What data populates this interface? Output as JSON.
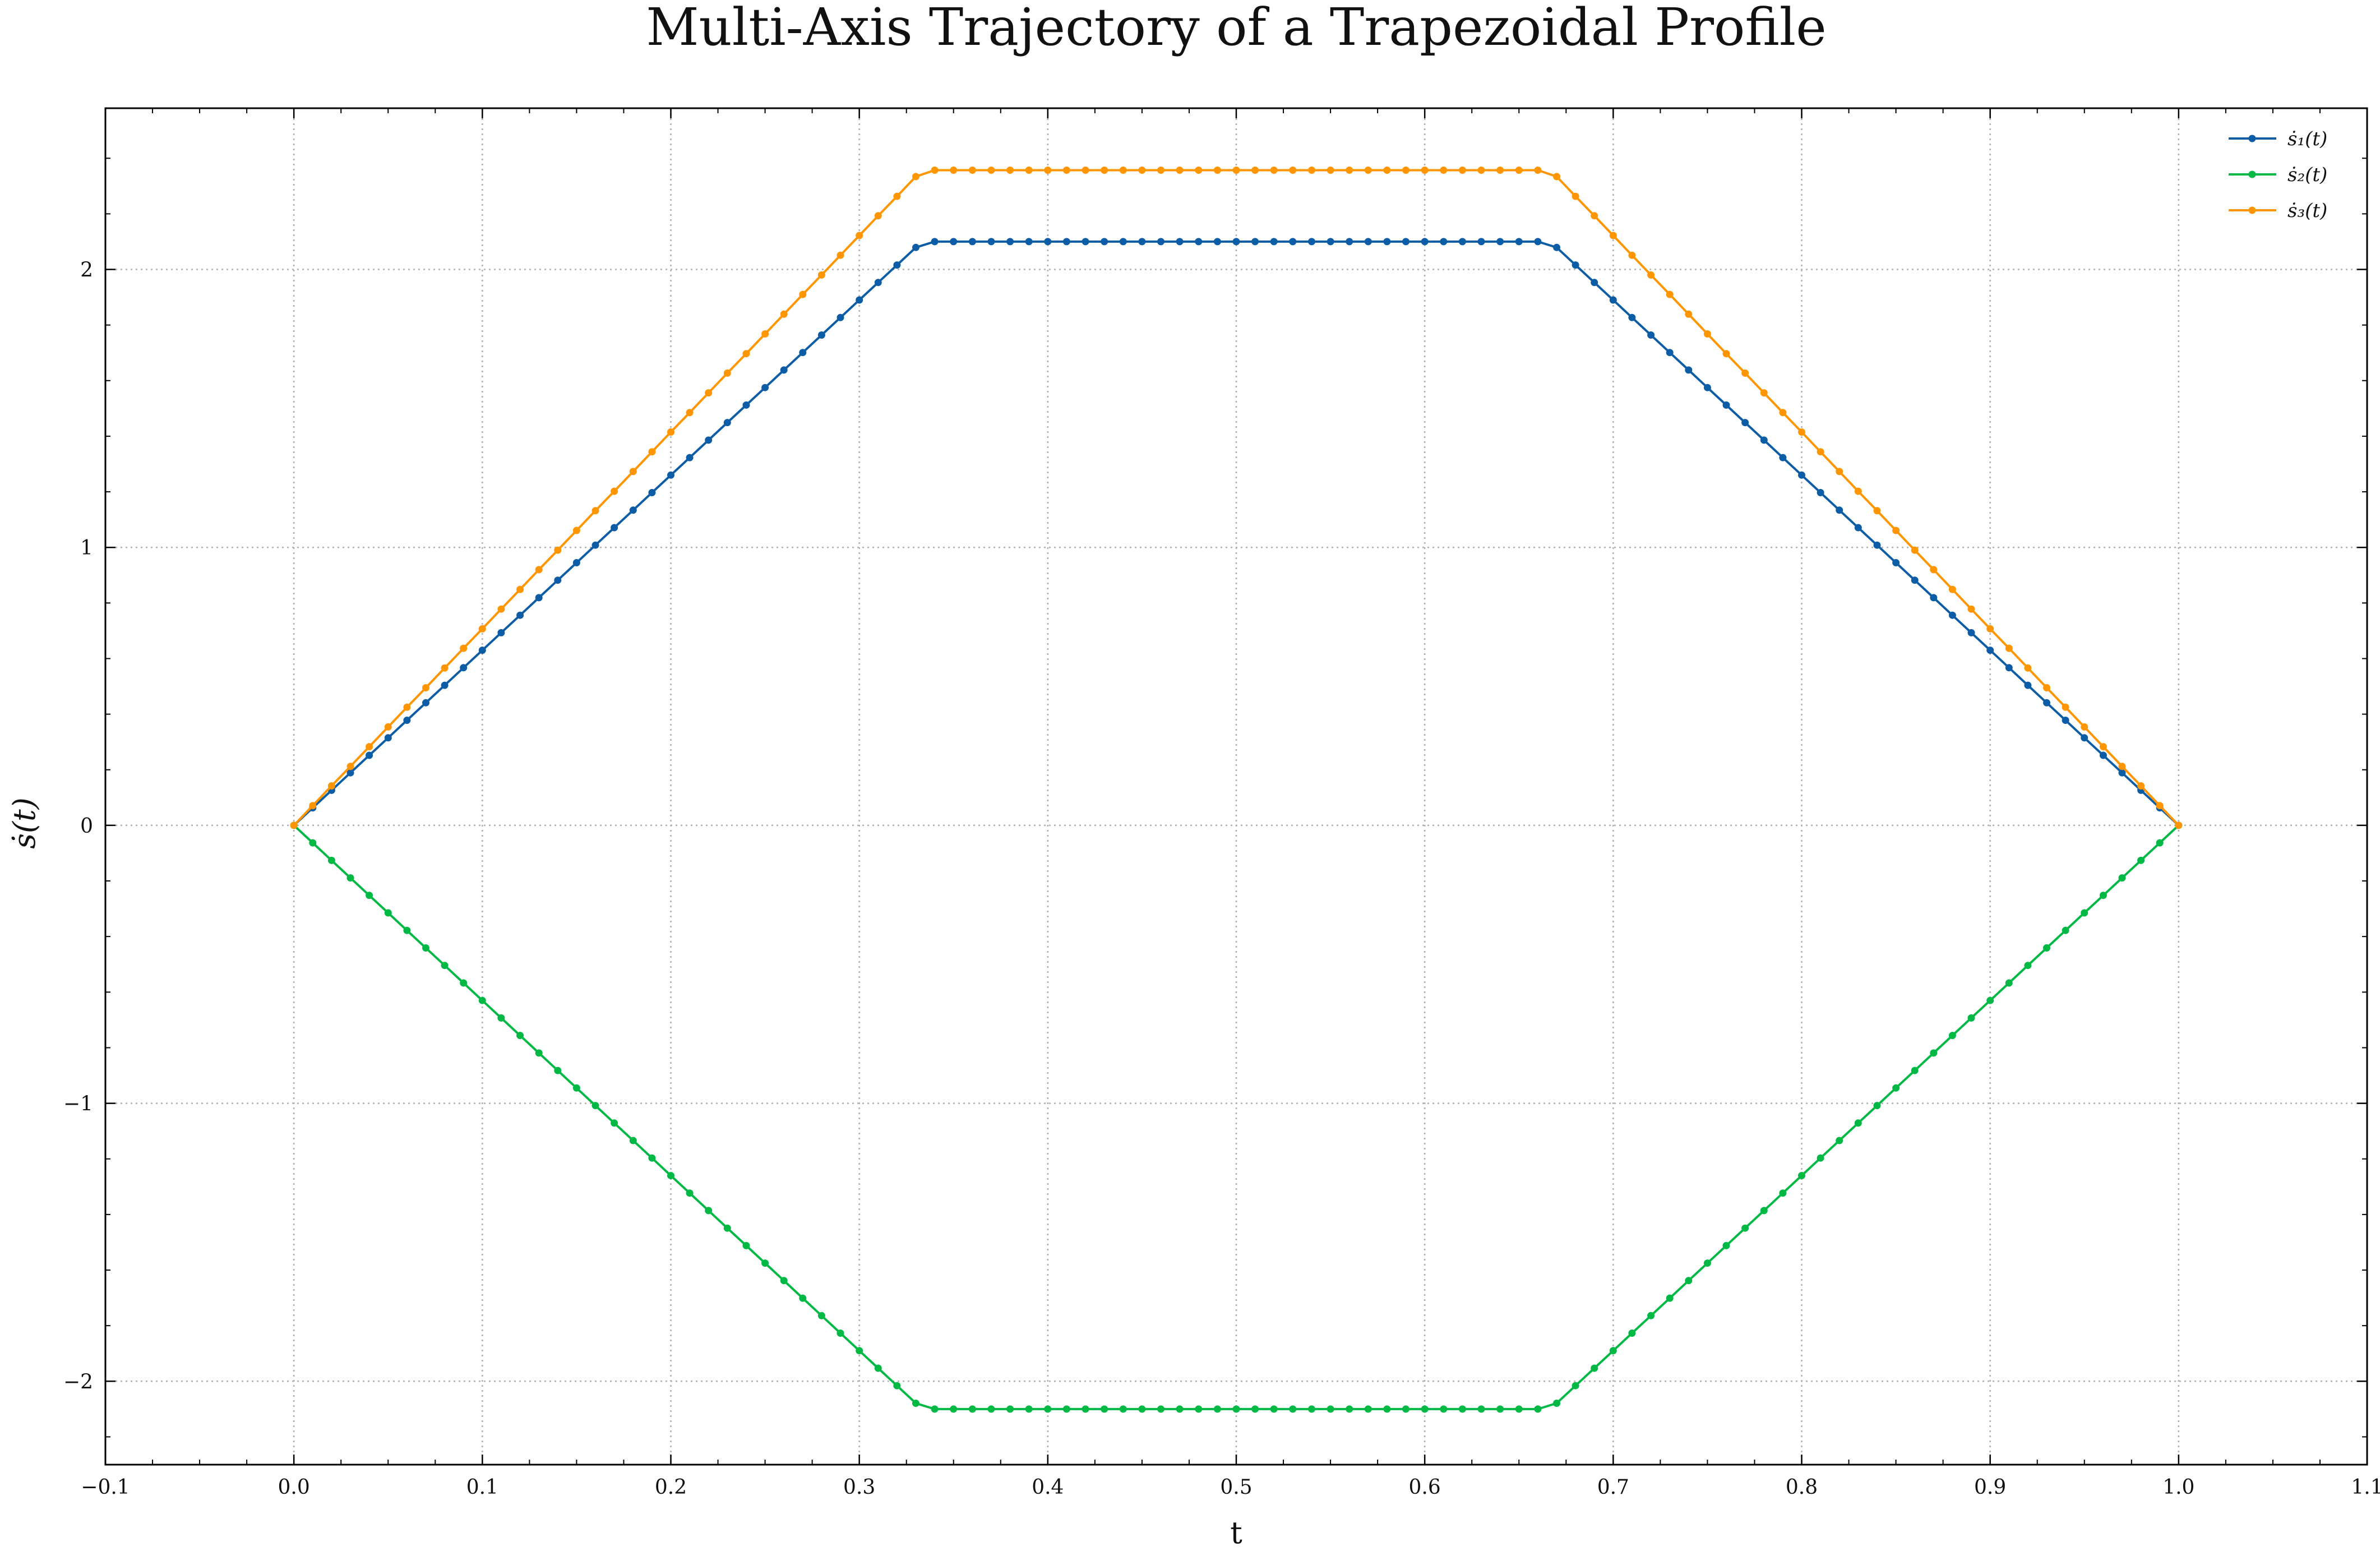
{
  "chart_data": {
    "type": "line",
    "title": "Multi-Axis Trajectory of a Trapezoidal Profile",
    "xlabel": "t",
    "ylabel": "ṡ(t)",
    "xlim": [
      -0.1,
      1.1
    ],
    "ylim": [
      -2.3,
      2.58
    ],
    "grid": true,
    "legend_position": "top-right",
    "x_ticks": [
      -0.1,
      0.0,
      0.1,
      0.2,
      0.3,
      0.4,
      0.5,
      0.6,
      0.7,
      0.8,
      0.9,
      1.0,
      1.1
    ],
    "x_tick_labels": [
      "−0.1",
      "0.0",
      "0.1",
      "0.2",
      "0.3",
      "0.4",
      "0.5",
      "0.6",
      "0.7",
      "0.8",
      "0.9",
      "1.0",
      "1.1"
    ],
    "y_ticks": [
      -2,
      -1,
      0,
      1,
      2
    ],
    "y_tick_labels": [
      "−2",
      "−1",
      "0",
      "1",
      "2"
    ],
    "x": [
      0.0,
      0.01,
      0.02,
      0.03,
      0.04,
      0.05,
      0.06,
      0.07,
      0.08,
      0.09,
      0.1,
      0.11,
      0.12,
      0.13,
      0.14,
      0.15,
      0.16,
      0.17,
      0.18,
      0.19,
      0.2,
      0.21,
      0.22,
      0.23,
      0.24,
      0.25,
      0.26,
      0.27,
      0.28,
      0.29,
      0.3,
      0.31,
      0.32,
      0.33,
      0.34,
      0.35,
      0.36,
      0.37,
      0.38,
      0.39,
      0.4,
      0.41,
      0.42,
      0.43,
      0.44,
      0.45,
      0.46,
      0.47,
      0.48,
      0.49,
      0.5,
      0.51,
      0.52,
      0.53,
      0.54,
      0.55,
      0.56,
      0.57,
      0.58,
      0.59,
      0.6,
      0.61,
      0.62,
      0.63,
      0.64,
      0.65,
      0.66,
      0.67,
      0.68,
      0.69,
      0.7,
      0.71,
      0.72,
      0.73,
      0.74,
      0.75,
      0.76,
      0.77,
      0.78,
      0.79,
      0.8,
      0.81,
      0.82,
      0.83,
      0.84,
      0.85,
      0.86,
      0.87,
      0.88,
      0.89,
      0.9,
      0.91,
      0.92,
      0.93,
      0.94,
      0.95,
      0.96,
      0.97,
      0.98,
      0.99,
      1.0
    ],
    "series": [
      {
        "name": "ṡ₁(t)",
        "color": "#0C5DA5",
        "values": [
          0.0,
          0.063,
          0.126,
          0.189,
          0.252,
          0.315,
          0.378,
          0.441,
          0.504,
          0.567,
          0.63,
          0.693,
          0.756,
          0.819,
          0.882,
          0.945,
          1.008,
          1.071,
          1.134,
          1.197,
          1.26,
          1.323,
          1.386,
          1.449,
          1.512,
          1.575,
          1.638,
          1.701,
          1.764,
          1.827,
          1.89,
          1.953,
          2.016,
          2.079,
          2.1,
          2.1,
          2.1,
          2.1,
          2.1,
          2.1,
          2.1,
          2.1,
          2.1,
          2.1,
          2.1,
          2.1,
          2.1,
          2.1,
          2.1,
          2.1,
          2.1,
          2.1,
          2.1,
          2.1,
          2.1,
          2.1,
          2.1,
          2.1,
          2.1,
          2.1,
          2.1,
          2.1,
          2.1,
          2.1,
          2.1,
          2.1,
          2.1,
          2.079,
          2.016,
          1.953,
          1.89,
          1.827,
          1.764,
          1.701,
          1.638,
          1.575,
          1.512,
          1.449,
          1.386,
          1.323,
          1.26,
          1.197,
          1.134,
          1.071,
          1.008,
          0.945,
          0.882,
          0.819,
          0.756,
          0.693,
          0.63,
          0.567,
          0.504,
          0.441,
          0.378,
          0.315,
          0.252,
          0.189,
          0.126,
          0.063,
          0.0
        ]
      },
      {
        "name": "ṡ₂(t)",
        "color": "#00B945",
        "values": [
          0.0,
          -0.063,
          -0.126,
          -0.189,
          -0.252,
          -0.315,
          -0.378,
          -0.441,
          -0.504,
          -0.567,
          -0.63,
          -0.693,
          -0.756,
          -0.819,
          -0.882,
          -0.945,
          -1.008,
          -1.071,
          -1.134,
          -1.197,
          -1.26,
          -1.323,
          -1.386,
          -1.449,
          -1.512,
          -1.575,
          -1.638,
          -1.701,
          -1.764,
          -1.827,
          -1.89,
          -1.953,
          -2.016,
          -2.079,
          -2.1,
          -2.1,
          -2.1,
          -2.1,
          -2.1,
          -2.1,
          -2.1,
          -2.1,
          -2.1,
          -2.1,
          -2.1,
          -2.1,
          -2.1,
          -2.1,
          -2.1,
          -2.1,
          -2.1,
          -2.1,
          -2.1,
          -2.1,
          -2.1,
          -2.1,
          -2.1,
          -2.1,
          -2.1,
          -2.1,
          -2.1,
          -2.1,
          -2.1,
          -2.1,
          -2.1,
          -2.1,
          -2.1,
          -2.079,
          -2.016,
          -1.953,
          -1.89,
          -1.827,
          -1.764,
          -1.701,
          -1.638,
          -1.575,
          -1.512,
          -1.449,
          -1.386,
          -1.323,
          -1.26,
          -1.197,
          -1.134,
          -1.071,
          -1.008,
          -0.945,
          -0.882,
          -0.819,
          -0.756,
          -0.693,
          -0.63,
          -0.567,
          -0.504,
          -0.441,
          -0.378,
          -0.315,
          -0.252,
          -0.189,
          -0.126,
          -0.063,
          0.0
        ]
      },
      {
        "name": "ṡ₃(t)",
        "color": "#FF9500",
        "values": [
          0.0,
          0.071,
          0.142,
          0.212,
          0.283,
          0.354,
          0.425,
          0.495,
          0.566,
          0.637,
          0.707,
          0.778,
          0.849,
          0.92,
          0.99,
          1.061,
          1.132,
          1.202,
          1.273,
          1.344,
          1.415,
          1.485,
          1.556,
          1.627,
          1.697,
          1.768,
          1.839,
          1.91,
          1.98,
          2.051,
          2.122,
          2.193,
          2.263,
          2.334,
          2.357,
          2.357,
          2.357,
          2.357,
          2.357,
          2.357,
          2.357,
          2.357,
          2.357,
          2.357,
          2.357,
          2.357,
          2.357,
          2.357,
          2.357,
          2.357,
          2.357,
          2.357,
          2.357,
          2.357,
          2.357,
          2.357,
          2.357,
          2.357,
          2.357,
          2.357,
          2.357,
          2.357,
          2.357,
          2.357,
          2.357,
          2.357,
          2.357,
          2.334,
          2.263,
          2.193,
          2.122,
          2.051,
          1.98,
          1.91,
          1.839,
          1.768,
          1.697,
          1.627,
          1.556,
          1.485,
          1.415,
          1.344,
          1.273,
          1.202,
          1.132,
          1.061,
          0.99,
          0.92,
          0.849,
          0.778,
          0.707,
          0.637,
          0.566,
          0.495,
          0.425,
          0.354,
          0.283,
          0.212,
          0.142,
          0.071,
          0.0
        ]
      }
    ]
  }
}
